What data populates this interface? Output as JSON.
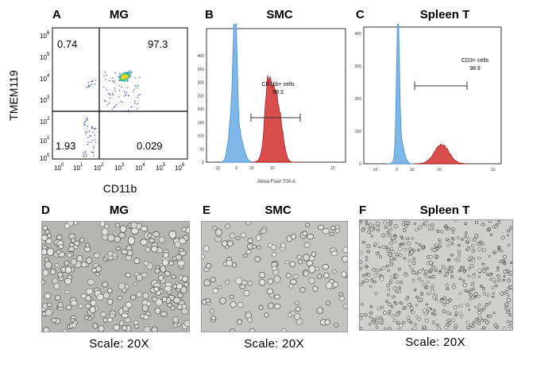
{
  "panels": {
    "a": {
      "letter": "A",
      "title": "MG",
      "xlabel": "CD11b",
      "ylabel": "TMEM119",
      "ticks": [
        "10",
        "10",
        "10",
        "10",
        "10",
        "10",
        "10"
      ],
      "exps": [
        "0",
        "1",
        "2",
        "3",
        "4",
        "5",
        "6"
      ],
      "quadrants": {
        "ul": "0.74",
        "ur": "97.3",
        "ll": "1.93",
        "lr": "0.029"
      }
    },
    "b": {
      "letter": "B",
      "title": "SMC",
      "xlabel": "Alexa Fluor 700-A",
      "gate_label": "CD11b+ cells",
      "gate_value": "99.3",
      "yticks": [
        "0",
        "50",
        "100",
        "150",
        "200",
        "250",
        "300",
        "350",
        "400"
      ]
    },
    "c": {
      "letter": "C",
      "title": "Spleen T",
      "gate_label": "CD3+ cells",
      "gate_value": "98.9",
      "yticks": [
        "0",
        "100",
        "200",
        "300",
        "400"
      ]
    },
    "d": {
      "letter": "D",
      "title": "MG",
      "scale": "Scale: 20X"
    },
    "e": {
      "letter": "E",
      "title": "SMC",
      "scale": "Scale: 20X"
    },
    "f": {
      "letter": "F",
      "title": "Spleen T",
      "scale": "Scale: 20X"
    }
  },
  "colors": {
    "blue_hist": "#7fb8e8",
    "red_hist": "#d63a3a",
    "red_edge": "#a10000",
    "blue_edge": "#3d8fd6"
  }
}
